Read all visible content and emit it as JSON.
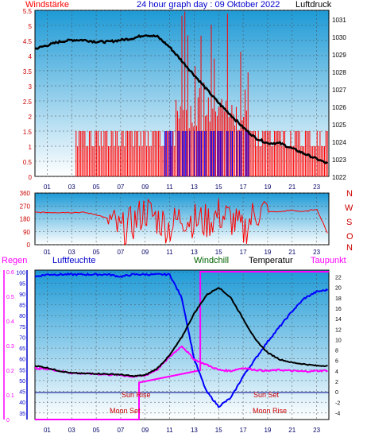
{
  "header": {
    "left_label": "Windstärke",
    "title": "24 hour graph day : 09 Oktober 2022",
    "right_label": "Luftdruck"
  },
  "colors": {
    "wind": "#ff0000",
    "gust_blue": "#0000ff",
    "pressure": "#000000",
    "humidity": "#0000ff",
    "windchill": "#006400",
    "temperature": "#000000",
    "dewpoint": "#ff00ff",
    "rain": "#ff00ff",
    "panel_top": "#1e9ad6",
    "panel_bottom": "#ffffff"
  },
  "hour_ticks": [
    "01",
    "03",
    "05",
    "07",
    "09",
    "11",
    "13",
    "15",
    "17",
    "19",
    "21",
    "23"
  ],
  "middle_panel": {
    "y_ticks": [
      "360",
      "270",
      "180",
      "90",
      "0"
    ],
    "directions": [
      "N",
      "W",
      "S",
      "O",
      "N"
    ]
  },
  "bottom_panel": {
    "labels": {
      "rain": "Regen",
      "humidity": "Luftfeuchte",
      "windchill": "Windchill",
      "temperature": "Temperatur",
      "dewpoint": "Taupunkt"
    },
    "annotations": {
      "sun_rise": "Sun Rise",
      "sun_set": "Sun Set",
      "moon_set": "Moon Set",
      "moon_rise": "Moon Rise"
    }
  },
  "chart_data": [
    {
      "type": "line",
      "name": "wind_and_pressure",
      "title": "24 hour graph day : 09 Oktober 2022",
      "x_ticks": [
        "01",
        "03",
        "05",
        "07",
        "09",
        "11",
        "13",
        "15",
        "17",
        "19",
        "21",
        "23"
      ],
      "y_left_ticks": [
        "0",
        "0.5",
        "1",
        "1.5",
        "2",
        "2.5",
        "3",
        "3.5",
        "4",
        "4.5",
        "5",
        "5.5"
      ],
      "y_left_range": [
        0,
        5.5
      ],
      "y_right_ticks": [
        "1022",
        "1023",
        "1024",
        "1025",
        "1026",
        "1027",
        "1028",
        "1029",
        "1030",
        "1031"
      ],
      "y_right_range": [
        1022,
        1031.5
      ],
      "pressure": {
        "x": [
          0,
          1,
          2,
          3,
          4,
          5,
          6,
          7,
          8,
          9,
          10,
          11,
          12,
          13,
          14,
          15,
          16,
          17,
          18,
          19,
          20,
          21,
          22,
          23,
          24
        ],
        "values": [
          1029.3,
          1029.5,
          1029.7,
          1029.8,
          1029.8,
          1029.7,
          1029.7,
          1029.8,
          1029.9,
          1030.1,
          1030.0,
          1029.4,
          1028.6,
          1027.8,
          1027.0,
          1026.2,
          1025.5,
          1024.8,
          1024.2,
          1023.9,
          1023.9,
          1023.6,
          1023.3,
          1023.0,
          1022.7
        ]
      },
      "wind": {
        "x": [
          0,
          1,
          2,
          3,
          4,
          5,
          6,
          7,
          8,
          9,
          10,
          11,
          12,
          13,
          14,
          15,
          16,
          17,
          18,
          19,
          20,
          21,
          22,
          23,
          24
        ],
        "values": [
          0,
          0,
          0,
          0,
          1,
          1,
          1,
          1,
          1,
          1,
          1,
          1,
          2,
          2,
          2,
          2,
          2,
          2,
          1,
          1,
          1,
          1,
          1,
          1,
          1
        ]
      }
    },
    {
      "type": "line",
      "name": "wind_direction",
      "x_ticks": [
        "01",
        "03",
        "05",
        "07",
        "09",
        "11",
        "13",
        "15",
        "17",
        "19",
        "21",
        "23"
      ],
      "y_ticks": [
        "360",
        "270",
        "180",
        "90",
        "0"
      ],
      "y_range": [
        0,
        360
      ],
      "direction": {
        "x": [
          0,
          1,
          2,
          3,
          4,
          5,
          6,
          7,
          8,
          9,
          10,
          11,
          12,
          13,
          14,
          15,
          16,
          17,
          18,
          19,
          20,
          21,
          22,
          23,
          24
        ],
        "values": [
          225,
          225,
          225,
          225,
          225,
          210,
          180,
          90,
          150,
          240,
          180,
          120,
          200,
          170,
          160,
          210,
          180,
          90,
          230,
          230,
          230,
          240,
          230,
          250,
          60
        ]
      }
    },
    {
      "type": "line",
      "name": "humidity_temperature_dewpoint",
      "x_ticks": [
        "01",
        "03",
        "05",
        "07",
        "09",
        "11",
        "13",
        "15",
        "17",
        "19",
        "21",
        "23"
      ],
      "rain_ticks": [
        "0",
        "0.1",
        "0.2",
        "0.3",
        "0.4",
        "0.5",
        "0.6"
      ],
      "humidity_ticks": [
        "35",
        "40",
        "45",
        "50",
        "55",
        "60",
        "65",
        "70",
        "75",
        "80",
        "85",
        "90",
        "95",
        "100"
      ],
      "temperature_ticks": [
        "-4",
        "-2",
        "0",
        "2",
        "4",
        "6",
        "8",
        "10",
        "12",
        "14",
        "16",
        "18",
        "20",
        "22"
      ],
      "humidity": {
        "x": [
          0,
          1,
          2,
          3,
          4,
          5,
          6,
          7,
          8,
          9,
          10,
          11,
          12,
          13,
          14,
          15,
          16,
          17,
          18,
          19,
          20,
          21,
          22,
          23,
          24
        ],
        "values": [
          98,
          99,
          99,
          99,
          99,
          99,
          99,
          98,
          99,
          99,
          99,
          99,
          88,
          60,
          45,
          38,
          42,
          52,
          60,
          68,
          75,
          82,
          88,
          91,
          92
        ]
      },
      "temperature": {
        "x": [
          0,
          1,
          2,
          3,
          4,
          5,
          6,
          7,
          8,
          9,
          10,
          11,
          12,
          13,
          14,
          15,
          16,
          17,
          18,
          19,
          20,
          21,
          22,
          23,
          24
        ],
        "values": [
          5.0,
          4.6,
          4.0,
          3.6,
          3.5,
          3.5,
          3.4,
          3.3,
          3.0,
          3.2,
          4.5,
          7.0,
          10.5,
          15.0,
          18.5,
          20.0,
          18.0,
          14.0,
          10.0,
          7.5,
          6.2,
          5.6,
          5.3,
          5.0,
          5.0
        ]
      },
      "dewpoint": {
        "x": [
          0,
          1,
          2,
          3,
          4,
          5,
          6,
          7,
          8,
          9,
          10,
          11,
          12,
          13,
          14,
          15,
          16,
          17,
          18,
          19,
          20,
          21,
          22,
          23,
          24
        ],
        "values": [
          4.5,
          4.4,
          4.0,
          3.6,
          3.5,
          3.4,
          3.3,
          3.2,
          2.9,
          3.1,
          4.3,
          6.7,
          8.8,
          6.2,
          5.2,
          4.2,
          4.0,
          4.6,
          4.2,
          4.0,
          4.2,
          4.0,
          3.9,
          4.0,
          4.1
        ]
      },
      "rain": {
        "x": [
          0,
          8.5,
          8.5,
          13.5,
          13.5,
          24
        ],
        "values": [
          0,
          0,
          0.15,
          0.2,
          0.6,
          0.6
        ]
      }
    }
  ]
}
